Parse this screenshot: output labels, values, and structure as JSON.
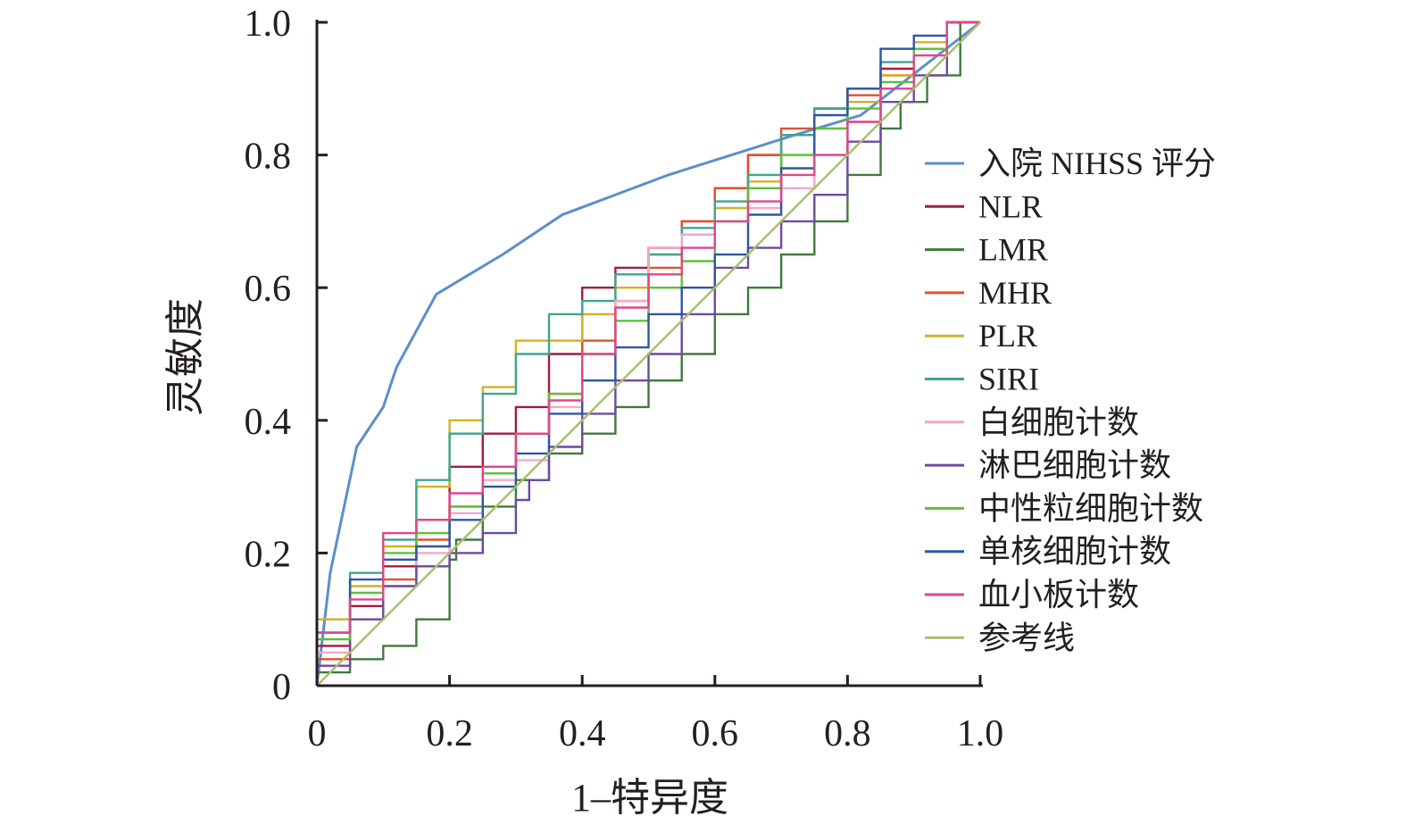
{
  "chart_data": {
    "type": "line",
    "xlabel": "1–特异度",
    "ylabel": "灵敏度",
    "xlim": [
      0,
      1
    ],
    "ylim": [
      0,
      1
    ],
    "x_ticks": [
      "0",
      "0.2",
      "0.4",
      "0.6",
      "0.8",
      "1.0"
    ],
    "y_ticks": [
      "0",
      "0.2",
      "0.4",
      "0.6",
      "0.8",
      "1.0"
    ],
    "grid": false,
    "legend_position": "right",
    "series": [
      {
        "name": "入院 NIHSS 评分",
        "color": "#5b8fcc",
        "points": [
          [
            0,
            0
          ],
          [
            0.02,
            0.17
          ],
          [
            0.06,
            0.36
          ],
          [
            0.1,
            0.42
          ],
          [
            0.12,
            0.48
          ],
          [
            0.18,
            0.59
          ],
          [
            0.28,
            0.65
          ],
          [
            0.37,
            0.71
          ],
          [
            0.53,
            0.77
          ],
          [
            0.72,
            0.83
          ],
          [
            0.82,
            0.86
          ],
          [
            1,
            1
          ]
        ]
      },
      {
        "name": "NLR",
        "color": "#a31c3c",
        "points": [
          [
            0,
            0
          ],
          [
            0.05,
            0.06
          ],
          [
            0.1,
            0.12
          ],
          [
            0.15,
            0.18
          ],
          [
            0.2,
            0.25
          ],
          [
            0.25,
            0.33
          ],
          [
            0.3,
            0.38
          ],
          [
            0.35,
            0.42
          ],
          [
            0.4,
            0.5
          ],
          [
            0.45,
            0.6
          ],
          [
            0.5,
            0.63
          ],
          [
            0.55,
            0.66
          ],
          [
            0.6,
            0.7
          ],
          [
            0.65,
            0.75
          ],
          [
            0.7,
            0.8
          ],
          [
            0.75,
            0.83
          ],
          [
            0.8,
            0.87
          ],
          [
            0.85,
            0.9
          ],
          [
            0.9,
            0.93
          ],
          [
            0.95,
            0.96
          ],
          [
            1,
            1
          ]
        ]
      },
      {
        "name": "LMR",
        "color": "#3f7a3c",
        "points": [
          [
            0,
            0
          ],
          [
            0.05,
            0.02
          ],
          [
            0.1,
            0.04
          ],
          [
            0.15,
            0.06
          ],
          [
            0.2,
            0.1
          ],
          [
            0.21,
            0.19
          ],
          [
            0.25,
            0.22
          ],
          [
            0.3,
            0.27
          ],
          [
            0.35,
            0.31
          ],
          [
            0.4,
            0.35
          ],
          [
            0.45,
            0.38
          ],
          [
            0.5,
            0.42
          ],
          [
            0.55,
            0.46
          ],
          [
            0.6,
            0.5
          ],
          [
            0.65,
            0.56
          ],
          [
            0.7,
            0.6
          ],
          [
            0.75,
            0.65
          ],
          [
            0.8,
            0.7
          ],
          [
            0.85,
            0.77
          ],
          [
            0.88,
            0.84
          ],
          [
            0.92,
            0.88
          ],
          [
            0.97,
            0.92
          ],
          [
            1,
            1
          ]
        ]
      },
      {
        "name": "MHR",
        "color": "#e0522e",
        "points": [
          [
            0,
            0
          ],
          [
            0.05,
            0.04
          ],
          [
            0.1,
            0.1
          ],
          [
            0.15,
            0.16
          ],
          [
            0.2,
            0.22
          ],
          [
            0.25,
            0.27
          ],
          [
            0.3,
            0.33
          ],
          [
            0.35,
            0.38
          ],
          [
            0.4,
            0.44
          ],
          [
            0.45,
            0.52
          ],
          [
            0.5,
            0.58
          ],
          [
            0.55,
            0.63
          ],
          [
            0.6,
            0.7
          ],
          [
            0.65,
            0.75
          ],
          [
            0.7,
            0.8
          ],
          [
            0.75,
            0.84
          ],
          [
            0.8,
            0.87
          ],
          [
            0.85,
            0.89
          ],
          [
            0.9,
            0.92
          ],
          [
            0.95,
            0.96
          ],
          [
            1,
            1
          ]
        ]
      },
      {
        "name": "PLR",
        "color": "#d4b023",
        "points": [
          [
            0,
            0
          ],
          [
            0.05,
            0.1
          ],
          [
            0.1,
            0.15
          ],
          [
            0.15,
            0.21
          ],
          [
            0.2,
            0.3
          ],
          [
            0.25,
            0.4
          ],
          [
            0.3,
            0.45
          ],
          [
            0.35,
            0.52
          ],
          [
            0.4,
            0.52
          ],
          [
            0.45,
            0.56
          ],
          [
            0.5,
            0.6
          ],
          [
            0.55,
            0.65
          ],
          [
            0.6,
            0.68
          ],
          [
            0.65,
            0.72
          ],
          [
            0.7,
            0.76
          ],
          [
            0.75,
            0.8
          ],
          [
            0.8,
            0.84
          ],
          [
            0.85,
            0.88
          ],
          [
            0.9,
            0.92
          ],
          [
            0.95,
            0.97
          ],
          [
            1,
            1
          ]
        ]
      },
      {
        "name": "SIRI",
        "color": "#3fa591",
        "points": [
          [
            0,
            0
          ],
          [
            0.05,
            0.08
          ],
          [
            0.1,
            0.17
          ],
          [
            0.15,
            0.22
          ],
          [
            0.2,
            0.31
          ],
          [
            0.25,
            0.38
          ],
          [
            0.3,
            0.44
          ],
          [
            0.35,
            0.5
          ],
          [
            0.4,
            0.56
          ],
          [
            0.45,
            0.58
          ],
          [
            0.5,
            0.62
          ],
          [
            0.55,
            0.65
          ],
          [
            0.6,
            0.69
          ],
          [
            0.65,
            0.73
          ],
          [
            0.7,
            0.77
          ],
          [
            0.75,
            0.83
          ],
          [
            0.8,
            0.87
          ],
          [
            0.85,
            0.9
          ],
          [
            0.9,
            0.94
          ],
          [
            0.95,
            0.96
          ],
          [
            1,
            1
          ]
        ]
      },
      {
        "name": "白细胞计数",
        "color": "#f2a9c7",
        "points": [
          [
            0,
            0
          ],
          [
            0.05,
            0.05
          ],
          [
            0.1,
            0.1
          ],
          [
            0.15,
            0.15
          ],
          [
            0.2,
            0.2
          ],
          [
            0.25,
            0.26
          ],
          [
            0.3,
            0.31
          ],
          [
            0.35,
            0.34
          ],
          [
            0.4,
            0.42
          ],
          [
            0.45,
            0.5
          ],
          [
            0.5,
            0.58
          ],
          [
            0.55,
            0.66
          ],
          [
            0.6,
            0.68
          ],
          [
            0.65,
            0.7
          ],
          [
            0.7,
            0.72
          ],
          [
            0.75,
            0.75
          ],
          [
            0.8,
            0.8
          ],
          [
            0.85,
            0.85
          ],
          [
            0.9,
            0.9
          ],
          [
            0.95,
            0.95
          ],
          [
            1,
            1
          ]
        ]
      },
      {
        "name": "淋巴细胞计数",
        "color": "#6e4aa0",
        "points": [
          [
            0,
            0
          ],
          [
            0.05,
            0.03
          ],
          [
            0.1,
            0.1
          ],
          [
            0.15,
            0.15
          ],
          [
            0.2,
            0.18
          ],
          [
            0.25,
            0.2
          ],
          [
            0.3,
            0.23
          ],
          [
            0.32,
            0.28
          ],
          [
            0.35,
            0.31
          ],
          [
            0.4,
            0.36
          ],
          [
            0.45,
            0.41
          ],
          [
            0.5,
            0.46
          ],
          [
            0.55,
            0.5
          ],
          [
            0.6,
            0.56
          ],
          [
            0.65,
            0.63
          ],
          [
            0.7,
            0.66
          ],
          [
            0.75,
            0.7
          ],
          [
            0.8,
            0.74
          ],
          [
            0.85,
            0.82
          ],
          [
            0.9,
            0.88
          ],
          [
            0.95,
            0.92
          ],
          [
            1,
            1
          ]
        ]
      },
      {
        "name": "中性粒细胞计数",
        "color": "#5fbf3a",
        "points": [
          [
            0,
            0
          ],
          [
            0.05,
            0.07
          ],
          [
            0.1,
            0.14
          ],
          [
            0.15,
            0.2
          ],
          [
            0.2,
            0.23
          ],
          [
            0.25,
            0.27
          ],
          [
            0.3,
            0.32
          ],
          [
            0.35,
            0.38
          ],
          [
            0.4,
            0.44
          ],
          [
            0.45,
            0.5
          ],
          [
            0.5,
            0.55
          ],
          [
            0.55,
            0.6
          ],
          [
            0.6,
            0.64
          ],
          [
            0.65,
            0.7
          ],
          [
            0.7,
            0.75
          ],
          [
            0.75,
            0.8
          ],
          [
            0.8,
            0.84
          ],
          [
            0.85,
            0.87
          ],
          [
            0.9,
            0.91
          ],
          [
            0.95,
            0.96
          ],
          [
            1,
            1
          ]
        ]
      },
      {
        "name": "单核细胞计数",
        "color": "#2e56a5",
        "points": [
          [
            0,
            0
          ],
          [
            0.05,
            0.08
          ],
          [
            0.1,
            0.16
          ],
          [
            0.15,
            0.19
          ],
          [
            0.2,
            0.21
          ],
          [
            0.25,
            0.25
          ],
          [
            0.3,
            0.3
          ],
          [
            0.35,
            0.35
          ],
          [
            0.4,
            0.41
          ],
          [
            0.45,
            0.46
          ],
          [
            0.5,
            0.51
          ],
          [
            0.55,
            0.56
          ],
          [
            0.6,
            0.6
          ],
          [
            0.65,
            0.65
          ],
          [
            0.7,
            0.71
          ],
          [
            0.75,
            0.78
          ],
          [
            0.8,
            0.86
          ],
          [
            0.85,
            0.9
          ],
          [
            0.9,
            0.96
          ],
          [
            0.95,
            0.98
          ],
          [
            1,
            1
          ]
        ]
      },
      {
        "name": "血小板计数",
        "color": "#e0468a",
        "points": [
          [
            0,
            0
          ],
          [
            0.05,
            0.08
          ],
          [
            0.1,
            0.13
          ],
          [
            0.15,
            0.23
          ],
          [
            0.2,
            0.25
          ],
          [
            0.25,
            0.29
          ],
          [
            0.3,
            0.33
          ],
          [
            0.35,
            0.38
          ],
          [
            0.4,
            0.43
          ],
          [
            0.45,
            0.5
          ],
          [
            0.5,
            0.57
          ],
          [
            0.55,
            0.62
          ],
          [
            0.6,
            0.66
          ],
          [
            0.65,
            0.7
          ],
          [
            0.7,
            0.73
          ],
          [
            0.75,
            0.77
          ],
          [
            0.8,
            0.8
          ],
          [
            0.85,
            0.85
          ],
          [
            0.9,
            0.9
          ],
          [
            0.95,
            0.95
          ],
          [
            1,
            1
          ]
        ]
      },
      {
        "name": "参考线",
        "color": "#a9bd6e",
        "points": [
          [
            0,
            0
          ],
          [
            1,
            1
          ]
        ]
      }
    ]
  }
}
